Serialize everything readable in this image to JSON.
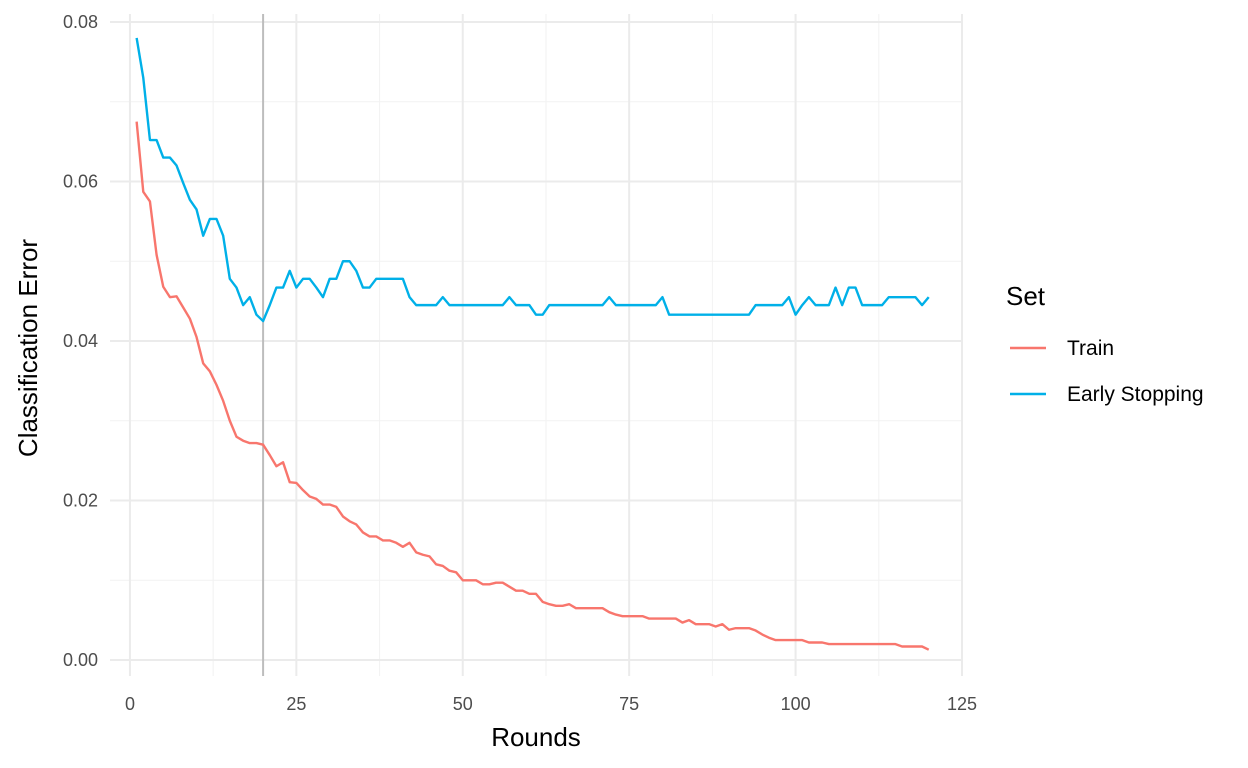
{
  "chart_data": {
    "type": "line",
    "title": "",
    "xlabel": "Rounds",
    "ylabel": "Classification Error",
    "xlim": [
      -3,
      125
    ],
    "ylim": [
      -0.002,
      0.081
    ],
    "x_ticks": [
      0,
      25,
      50,
      75,
      100,
      125
    ],
    "y_ticks": [
      0.0,
      0.02,
      0.04,
      0.06,
      0.08
    ],
    "y_tick_labels": [
      "0.00",
      "0.02",
      "0.04",
      "0.06",
      "0.08"
    ],
    "grid": true,
    "legend": {
      "title": "Set",
      "position": "right"
    },
    "vline": {
      "x": 20,
      "color": "#bdbdbd"
    },
    "series": [
      {
        "name": "Train",
        "color": "#F8766D",
        "x": [
          1,
          2,
          3,
          4,
          5,
          6,
          7,
          8,
          9,
          10,
          11,
          12,
          13,
          14,
          15,
          16,
          17,
          18,
          19,
          20,
          21,
          22,
          23,
          24,
          25,
          26,
          27,
          28,
          29,
          30,
          31,
          32,
          33,
          34,
          35,
          36,
          37,
          38,
          39,
          40,
          41,
          42,
          43,
          44,
          45,
          46,
          47,
          48,
          49,
          50,
          51,
          52,
          53,
          54,
          55,
          56,
          57,
          58,
          59,
          60,
          61,
          62,
          63,
          64,
          65,
          66,
          67,
          68,
          69,
          70,
          71,
          72,
          73,
          74,
          75,
          76,
          77,
          78,
          79,
          80,
          81,
          82,
          83,
          84,
          85,
          86,
          87,
          88,
          89,
          90,
          91,
          92,
          93,
          94,
          95,
          96,
          97,
          98,
          99,
          100,
          101,
          102,
          103,
          104,
          105,
          106,
          107,
          108,
          109,
          110,
          111,
          112,
          113,
          114,
          115,
          116,
          117,
          118,
          119,
          120
        ],
        "values": [
          0.0675,
          0.0587,
          0.0575,
          0.0508,
          0.0468,
          0.0455,
          0.0456,
          0.0442,
          0.0428,
          0.0405,
          0.0372,
          0.0362,
          0.0345,
          0.0325,
          0.03,
          0.028,
          0.0275,
          0.0272,
          0.0272,
          0.027,
          0.0257,
          0.0243,
          0.0248,
          0.0223,
          0.0222,
          0.0213,
          0.0205,
          0.0202,
          0.0195,
          0.0195,
          0.0192,
          0.018,
          0.0174,
          0.017,
          0.016,
          0.0155,
          0.0155,
          0.015,
          0.015,
          0.0147,
          0.0142,
          0.0147,
          0.0135,
          0.0132,
          0.013,
          0.012,
          0.0118,
          0.0112,
          0.011,
          0.01,
          0.01,
          0.01,
          0.0095,
          0.0095,
          0.0097,
          0.0097,
          0.0092,
          0.0087,
          0.0087,
          0.0083,
          0.0083,
          0.0073,
          0.007,
          0.0068,
          0.0068,
          0.007,
          0.0065,
          0.0065,
          0.0065,
          0.0065,
          0.0065,
          0.006,
          0.0057,
          0.0055,
          0.0055,
          0.0055,
          0.0055,
          0.0052,
          0.0052,
          0.0052,
          0.0052,
          0.0052,
          0.0047,
          0.005,
          0.0045,
          0.0045,
          0.0045,
          0.0042,
          0.0045,
          0.0038,
          0.004,
          0.004,
          0.004,
          0.0037,
          0.0032,
          0.0028,
          0.0025,
          0.0025,
          0.0025,
          0.0025,
          0.0025,
          0.0022,
          0.0022,
          0.0022,
          0.002,
          0.002,
          0.002,
          0.002,
          0.002,
          0.002,
          0.002,
          0.002,
          0.002,
          0.002,
          0.002,
          0.0017,
          0.0017,
          0.0017,
          0.0017,
          0.0013
        ]
      },
      {
        "name": "Early Stopping",
        "color": "#00B0E8",
        "x": [
          1,
          2,
          3,
          4,
          5,
          6,
          7,
          8,
          9,
          10,
          11,
          12,
          13,
          14,
          15,
          16,
          17,
          18,
          19,
          20,
          21,
          22,
          23,
          24,
          25,
          26,
          27,
          28,
          29,
          30,
          31,
          32,
          33,
          34,
          35,
          36,
          37,
          38,
          39,
          40,
          41,
          42,
          43,
          44,
          45,
          46,
          47,
          48,
          49,
          50,
          51,
          52,
          53,
          54,
          55,
          56,
          57,
          58,
          59,
          60,
          61,
          62,
          63,
          64,
          65,
          66,
          67,
          68,
          69,
          70,
          71,
          72,
          73,
          74,
          75,
          76,
          77,
          78,
          79,
          80,
          81,
          82,
          83,
          84,
          85,
          86,
          87,
          88,
          89,
          90,
          91,
          92,
          93,
          94,
          95,
          96,
          97,
          98,
          99,
          100,
          101,
          102,
          103,
          104,
          105,
          106,
          107,
          108,
          109,
          110,
          111,
          112,
          113,
          114,
          115,
          116,
          117,
          118,
          119,
          120
        ],
        "values": [
          0.078,
          0.073,
          0.0652,
          0.0652,
          0.063,
          0.063,
          0.062,
          0.0598,
          0.0577,
          0.0565,
          0.0532,
          0.0553,
          0.0553,
          0.0532,
          0.0478,
          0.0467,
          0.0445,
          0.0455,
          0.0433,
          0.0425,
          0.0445,
          0.0467,
          0.0467,
          0.0488,
          0.0467,
          0.0478,
          0.0478,
          0.0467,
          0.0455,
          0.0478,
          0.0478,
          0.05,
          0.05,
          0.0488,
          0.0467,
          0.0467,
          0.0478,
          0.0478,
          0.0478,
          0.0478,
          0.0478,
          0.0455,
          0.0445,
          0.0445,
          0.0445,
          0.0445,
          0.0455,
          0.0445,
          0.0445,
          0.0445,
          0.0445,
          0.0445,
          0.0445,
          0.0445,
          0.0445,
          0.0445,
          0.0455,
          0.0445,
          0.0445,
          0.0445,
          0.0433,
          0.0433,
          0.0445,
          0.0445,
          0.0445,
          0.0445,
          0.0445,
          0.0445,
          0.0445,
          0.0445,
          0.0445,
          0.0455,
          0.0445,
          0.0445,
          0.0445,
          0.0445,
          0.0445,
          0.0445,
          0.0445,
          0.0455,
          0.0433,
          0.0433,
          0.0433,
          0.0433,
          0.0433,
          0.0433,
          0.0433,
          0.0433,
          0.0433,
          0.0433,
          0.0433,
          0.0433,
          0.0433,
          0.0445,
          0.0445,
          0.0445,
          0.0445,
          0.0445,
          0.0455,
          0.0433,
          0.0445,
          0.0455,
          0.0445,
          0.0445,
          0.0445,
          0.0467,
          0.0445,
          0.0467,
          0.0467,
          0.0445,
          0.0445,
          0.0445,
          0.0445,
          0.0455,
          0.0455,
          0.0455,
          0.0455,
          0.0455,
          0.0445,
          0.0455
        ]
      }
    ]
  }
}
